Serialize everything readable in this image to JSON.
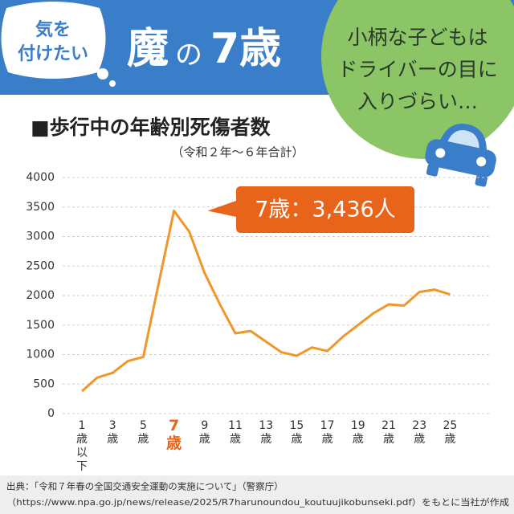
{
  "header": {
    "badge": [
      "気を",
      "付けたい"
    ],
    "title": [
      "魔",
      "の",
      "7歳"
    ],
    "bubble": [
      "小柄な子どもは",
      "ドライバーの目に",
      "入りづらい…"
    ]
  },
  "chart_data": {
    "type": "line",
    "title": "■歩行中の年齢別死傷者数",
    "subtitle": "（令和２年～６年合計）",
    "categories": [
      "1歳以下",
      null,
      "3歳",
      null,
      "5歳",
      null,
      "7歳",
      null,
      "9歳",
      null,
      "11歳",
      null,
      "13歳",
      null,
      "15歳",
      null,
      "17歳",
      null,
      "19歳",
      null,
      "21歳",
      null,
      "23歳",
      null,
      "25歳",
      null
    ],
    "series": [
      {
        "name": "死傷者数",
        "color": "#f0962a",
        "values": [
          380,
          610,
          690,
          890,
          960,
          2200,
          3436,
          3080,
          2380,
          1850,
          1360,
          1400,
          1220,
          1040,
          980,
          1120,
          1060,
          1300,
          1500,
          1700,
          1850,
          1830,
          2060,
          2100,
          2020,
          null
        ]
      }
    ],
    "ylim": [
      0,
      4000
    ],
    "yticks": [
      0,
      500,
      1000,
      1500,
      2000,
      2500,
      3000,
      3500,
      4000
    ],
    "grid": true,
    "highlight": {
      "category": 6,
      "color": "#e8641b"
    },
    "annotation": "7歳：3,436人"
  },
  "source": [
    "出典：「令和７年春の全国交通安全運動の実施について」（警察庁）",
    "（https://www.npa.go.jp/news/release/2025/R7harunoundou_koutuujikobunseki.pdf）をもとに当社が作成"
  ]
}
